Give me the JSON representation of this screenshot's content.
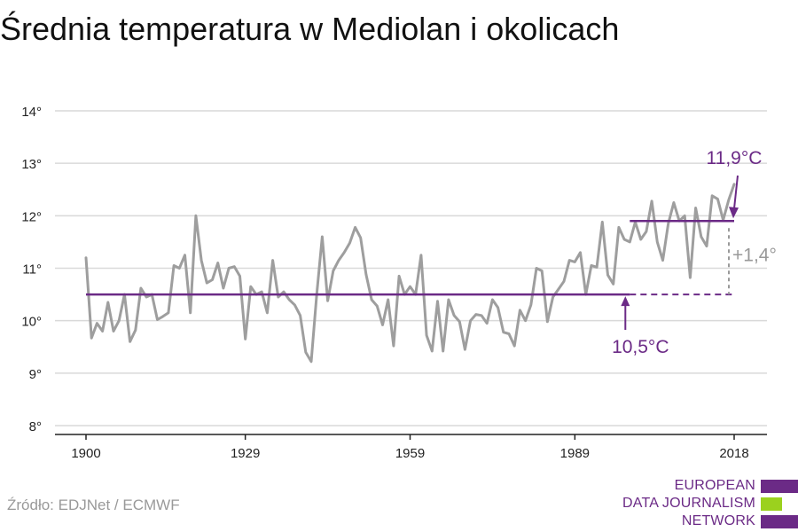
{
  "header": {
    "title": "Średnia temperatura w Mediolan i okolicach"
  },
  "footer": {
    "source": "Źródło: EDJNet / ECMWF"
  },
  "logo": {
    "line1": "EUROPEAN",
    "line2": "DATA JOURNALISM",
    "line3": "NETWORK",
    "color": "#6b2a86",
    "accent": "#9bd11e"
  },
  "chart_data": {
    "type": "line",
    "title": "Średnia temperatura w Mediolan i okolicach",
    "xlabel": "",
    "ylabel": "",
    "xlim": [
      1900,
      2018
    ],
    "ylim": [
      8,
      14
    ],
    "x_ticks": [
      "1900",
      "1929",
      "1959",
      "1989",
      "2018"
    ],
    "x_tick_values": [
      1900,
      1929,
      1959,
      1989,
      2018
    ],
    "y_ticks": [
      "8°",
      "9°",
      "10°",
      "11°",
      "12°",
      "13°",
      "14°"
    ],
    "y_tick_values": [
      8,
      9,
      10,
      11,
      12,
      13,
      14
    ],
    "grid": true,
    "colors": {
      "series": "#9e9e9e",
      "baseline": "#6b2a86",
      "annotation_gray": "#999999"
    },
    "series": [
      {
        "x_start": 1900,
        "values": [
          11.2,
          9.67,
          9.95,
          9.8,
          10.35,
          9.8,
          10.0,
          10.5,
          9.6,
          9.82,
          10.62,
          10.45,
          10.5,
          10.02,
          10.08,
          10.15,
          11.05,
          11.0,
          11.25,
          10.15,
          12.0,
          11.15,
          10.72,
          10.78,
          11.1,
          10.62,
          11.0,
          11.03,
          10.85,
          9.65,
          10.65,
          10.5,
          10.55,
          10.15,
          11.15,
          10.45,
          10.55,
          10.4,
          10.3,
          10.1,
          9.4,
          9.22,
          10.5,
          11.6,
          10.38,
          10.95,
          11.15,
          11.3,
          11.48,
          11.78,
          11.58,
          10.88,
          10.4,
          10.28,
          9.92,
          10.4,
          9.52,
          10.85,
          10.5,
          10.65,
          10.5,
          11.25,
          9.72,
          9.42,
          10.37,
          9.42,
          10.4,
          10.1,
          9.98,
          9.45,
          10.0,
          10.12,
          10.1,
          9.95,
          10.4,
          10.25,
          9.78,
          9.75,
          9.52,
          10.2,
          10.0,
          10.3,
          11.0,
          10.95,
          9.98,
          10.45,
          10.6,
          10.75,
          11.15,
          11.12,
          11.3,
          10.5,
          11.05,
          11.02,
          11.88,
          10.87,
          10.7,
          11.78,
          11.55,
          11.5,
          11.88,
          11.55,
          11.7,
          12.28,
          11.5,
          11.15,
          11.85,
          12.25,
          11.9,
          12.0,
          10.82,
          12.15,
          11.6,
          11.42,
          12.38,
          12.32,
          11.92,
          12.3,
          12.6
        ]
      }
    ],
    "baseline": {
      "value": 10.5,
      "label": "10,5°C",
      "x_from": 1900,
      "x_to_solid": 1999,
      "x_to_dashed": 2018
    },
    "recent": {
      "value": 11.9,
      "label": "11,9°C",
      "x_from": 1999,
      "x_to": 2018
    },
    "difference_label": "+1,4°"
  }
}
